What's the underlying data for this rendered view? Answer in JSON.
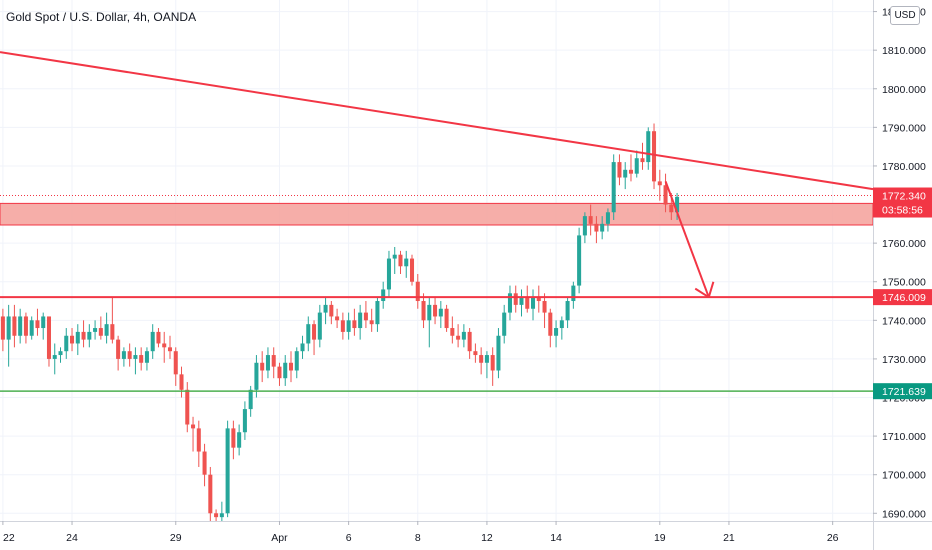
{
  "chart_data": {
    "type": "candlestick",
    "title": "Gold Spot / U.S. Dollar, 4h, OANDA",
    "currency": "USD",
    "ylim": [
      1688,
      1823
    ],
    "y_ticks": [
      1690,
      1700,
      1710,
      1720,
      1730,
      1740,
      1750,
      1760,
      1770,
      1780,
      1790,
      1800,
      1810,
      1820
    ],
    "y_tick_labels": [
      "1690.000",
      "1700.000",
      "1710.000",
      "1720.000",
      "1730.000",
      "1740.000",
      "1750.000",
      "1760.000",
      "1770.000",
      "1780.000",
      "1790.000",
      "1800.000",
      "1810.000",
      "1820.000"
    ],
    "x_ticks": [
      {
        "label": "22",
        "bar": 0
      },
      {
        "label": "24",
        "bar": 12
      },
      {
        "label": "29",
        "bar": 30
      },
      {
        "label": "Apr",
        "bar": 48
      },
      {
        "label": "6",
        "bar": 60
      },
      {
        "label": "8",
        "bar": 72
      },
      {
        "label": "12",
        "bar": 84
      },
      {
        "label": "14",
        "bar": 96
      },
      {
        "label": "19",
        "bar": 114
      },
      {
        "label": "21",
        "bar": 126
      },
      {
        "label": "26",
        "bar": 144
      }
    ],
    "x_range_bars": [
      -0.5,
      151
    ],
    "grid": true,
    "candles": [
      [
        1741,
        1743,
        1732,
        1735
      ],
      [
        1735,
        1744,
        1728,
        1741
      ],
      [
        1741,
        1744,
        1733,
        1736
      ],
      [
        1736,
        1743,
        1734,
        1741
      ],
      [
        1741,
        1742,
        1734,
        1736
      ],
      [
        1736,
        1741,
        1735,
        1740
      ],
      [
        1740,
        1743,
        1736,
        1738
      ],
      [
        1738,
        1742,
        1735,
        1741
      ],
      [
        1741,
        1741,
        1728,
        1730
      ],
      [
        1730,
        1734,
        1726,
        1731
      ],
      [
        1731,
        1733,
        1729,
        1732
      ],
      [
        1732,
        1738,
        1730,
        1736
      ],
      [
        1736,
        1738,
        1732,
        1734
      ],
      [
        1734,
        1739,
        1731,
        1737
      ],
      [
        1737,
        1740,
        1733,
        1735
      ],
      [
        1735,
        1739,
        1733,
        1737
      ],
      [
        1737,
        1740,
        1735,
        1738
      ],
      [
        1738,
        1741,
        1735,
        1736
      ],
      [
        1736,
        1742,
        1734,
        1739
      ],
      [
        1739,
        1746,
        1734,
        1735
      ],
      [
        1735,
        1736,
        1727,
        1730
      ],
      [
        1730,
        1733,
        1728,
        1732
      ],
      [
        1732,
        1734,
        1728,
        1730
      ],
      [
        1730,
        1733,
        1726,
        1731
      ],
      [
        1731,
        1733,
        1727,
        1729
      ],
      [
        1729,
        1733,
        1727,
        1732
      ],
      [
        1732,
        1739,
        1730,
        1737
      ],
      [
        1737,
        1738,
        1733,
        1734
      ],
      [
        1734,
        1737,
        1729,
        1733
      ],
      [
        1733,
        1736,
        1730,
        1732
      ],
      [
        1732,
        1733,
        1723,
        1726
      ],
      [
        1726,
        1728,
        1720,
        1722
      ],
      [
        1722,
        1724,
        1711,
        1713
      ],
      [
        1713,
        1715,
        1706,
        1712
      ],
      [
        1712,
        1714,
        1702,
        1706
      ],
      [
        1706,
        1708,
        1697,
        1700
      ],
      [
        1700,
        1702,
        1688,
        1690
      ],
      [
        1690,
        1691,
        1686,
        1689
      ],
      [
        1689,
        1693,
        1687,
        1690
      ],
      [
        1690,
        1714,
        1689,
        1712
      ],
      [
        1712,
        1714,
        1704,
        1707
      ],
      [
        1707,
        1713,
        1705,
        1711
      ],
      [
        1711,
        1719,
        1709,
        1717
      ],
      [
        1717,
        1723,
        1715,
        1722
      ],
      [
        1722,
        1731,
        1720,
        1729
      ],
      [
        1729,
        1732,
        1724,
        1727
      ],
      [
        1727,
        1733,
        1725,
        1731
      ],
      [
        1731,
        1733,
        1725,
        1728
      ],
      [
        1728,
        1729,
        1723,
        1725
      ],
      [
        1725,
        1731,
        1723,
        1729
      ],
      [
        1729,
        1732,
        1724,
        1727
      ],
      [
        1727,
        1733,
        1725,
        1732
      ],
      [
        1732,
        1736,
        1730,
        1734
      ],
      [
        1734,
        1741,
        1732,
        1739
      ],
      [
        1739,
        1740,
        1731,
        1735
      ],
      [
        1735,
        1744,
        1733,
        1742
      ],
      [
        1742,
        1746,
        1739,
        1744
      ],
      [
        1744,
        1745,
        1739,
        1741
      ],
      [
        1741,
        1743,
        1738,
        1740
      ],
      [
        1740,
        1742,
        1735,
        1737
      ],
      [
        1737,
        1742,
        1735,
        1740
      ],
      [
        1740,
        1743,
        1736,
        1738
      ],
      [
        1738,
        1744,
        1735,
        1742
      ],
      [
        1742,
        1745,
        1738,
        1740
      ],
      [
        1740,
        1743,
        1737,
        1739
      ],
      [
        1739,
        1746,
        1737,
        1745
      ],
      [
        1745,
        1750,
        1743,
        1748
      ],
      [
        1748,
        1758,
        1746,
        1756
      ],
      [
        1756,
        1759,
        1752,
        1757
      ],
      [
        1757,
        1758,
        1752,
        1754
      ],
      [
        1754,
        1758,
        1751,
        1756
      ],
      [
        1756,
        1757,
        1749,
        1750
      ],
      [
        1750,
        1752,
        1743,
        1745
      ],
      [
        1745,
        1747,
        1738,
        1740
      ],
      [
        1740,
        1746,
        1733,
        1744
      ],
      [
        1744,
        1746,
        1739,
        1741
      ],
      [
        1741,
        1745,
        1738,
        1743
      ],
      [
        1743,
        1744,
        1737,
        1738
      ],
      [
        1738,
        1741,
        1734,
        1736
      ],
      [
        1736,
        1739,
        1733,
        1735
      ],
      [
        1735,
        1739,
        1733,
        1737
      ],
      [
        1737,
        1738,
        1730,
        1732
      ],
      [
        1732,
        1734,
        1729,
        1731
      ],
      [
        1731,
        1733,
        1726,
        1729
      ],
      [
        1729,
        1732,
        1725,
        1731
      ],
      [
        1731,
        1733,
        1723,
        1727
      ],
      [
        1727,
        1738,
        1725,
        1736
      ],
      [
        1736,
        1744,
        1734,
        1742
      ],
      [
        1742,
        1749,
        1740,
        1747
      ],
      [
        1747,
        1749,
        1742,
        1744
      ],
      [
        1744,
        1748,
        1741,
        1746
      ],
      [
        1746,
        1749,
        1742,
        1743
      ],
      [
        1743,
        1748,
        1740,
        1746
      ],
      [
        1746,
        1749,
        1742,
        1745
      ],
      [
        1745,
        1747,
        1738,
        1742
      ],
      [
        1742,
        1743,
        1733,
        1736
      ],
      [
        1736,
        1740,
        1733,
        1738
      ],
      [
        1738,
        1741,
        1735,
        1740
      ],
      [
        1740,
        1746,
        1738,
        1745
      ],
      [
        1745,
        1750,
        1743,
        1749
      ],
      [
        1749,
        1764,
        1747,
        1762
      ],
      [
        1762,
        1768,
        1760,
        1767
      ],
      [
        1767,
        1770,
        1762,
        1765
      ],
      [
        1765,
        1767,
        1760,
        1763
      ],
      [
        1763,
        1767,
        1761,
        1765
      ],
      [
        1765,
        1769,
        1763,
        1768
      ],
      [
        1768,
        1783,
        1766,
        1781
      ],
      [
        1781,
        1783,
        1775,
        1777
      ],
      [
        1777,
        1781,
        1774,
        1779
      ],
      [
        1779,
        1783,
        1776,
        1778
      ],
      [
        1778,
        1784,
        1777,
        1782
      ],
      [
        1782,
        1786,
        1779,
        1781
      ],
      [
        1781,
        1790,
        1779,
        1789
      ],
      [
        1789,
        1791,
        1774,
        1776
      ],
      [
        1776,
        1779,
        1771,
        1775
      ],
      [
        1775,
        1778,
        1768,
        1770
      ],
      [
        1770,
        1773,
        1766,
        1768
      ],
      [
        1768,
        1773,
        1766,
        1772
      ]
    ],
    "trendline": {
      "start": {
        "bar": -0.5,
        "price": 1809.5
      },
      "end": {
        "bar": 151,
        "price": 1774
      }
    },
    "resistance_zone": {
      "top": 1770.3,
      "bottom": 1764.7
    },
    "horizontal_levels": [
      {
        "price": 1746.009,
        "label": "1746.009",
        "color": "#f23645"
      },
      {
        "price": 1721.639,
        "label": "1721.639",
        "color": "#089981"
      }
    ],
    "current_price": {
      "price": 1772.34,
      "label": "1772.340",
      "countdown": "03:58:56",
      "color": "#f23645"
    },
    "arrow": {
      "start": {
        "bar": 115,
        "price": 1776
      },
      "end": {
        "bar": 122.5,
        "price": 1746
      }
    },
    "colors": {
      "up": "#26a69a",
      "down": "#ef5350",
      "trend": "#f23645",
      "zone": "#f5a09a",
      "support": "#4caf50"
    }
  }
}
